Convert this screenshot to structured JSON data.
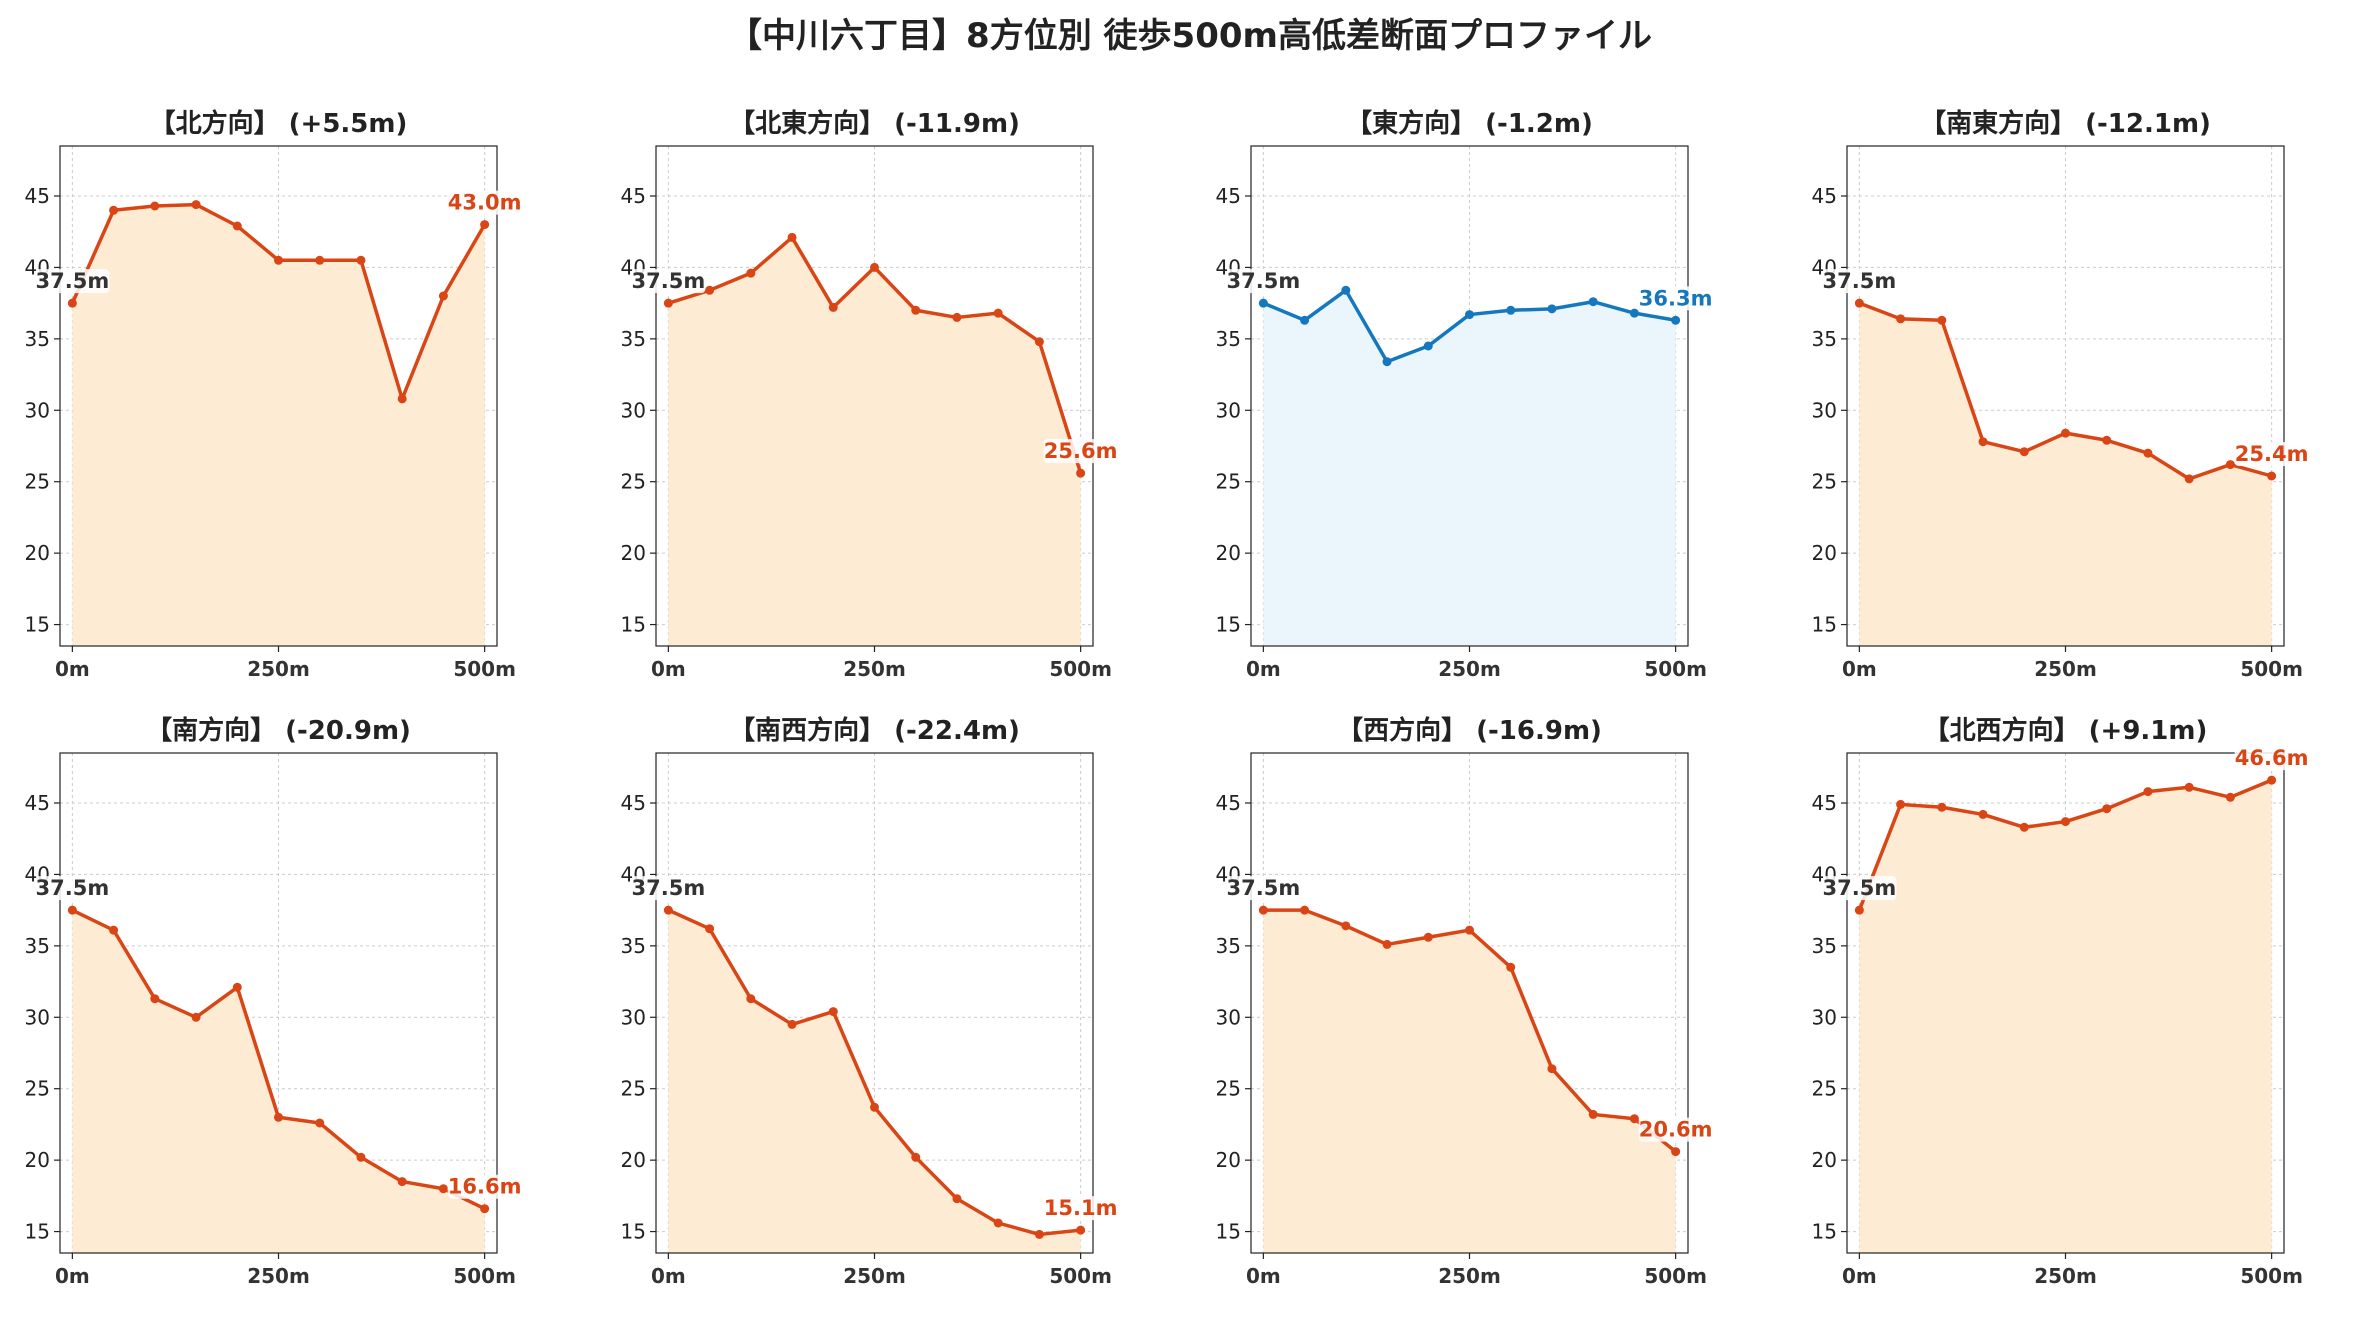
{
  "title": "【中川六丁目】8方位別 徒歩500m高低差断面プロファイル",
  "colors": {
    "down_line": "#d94515",
    "down_fill": "#fdebd3",
    "flat_line": "#1577be",
    "flat_fill": "#eaf6fc",
    "start_label": "#333333"
  },
  "chart_data": [
    {
      "type": "area",
      "title": "【北方向】 (+5.5m)",
      "trend": "down",
      "x": [
        0,
        50,
        100,
        150,
        200,
        250,
        300,
        350,
        400,
        450,
        500
      ],
      "y": [
        37.5,
        44.0,
        44.3,
        44.4,
        42.9,
        40.5,
        40.5,
        40.5,
        30.8,
        38.0,
        43.0
      ],
      "start_label": "37.5m",
      "end_label": "43.0m",
      "xticks": [
        "0m",
        "250m",
        "500m"
      ],
      "yticks": [
        15,
        20,
        25,
        30,
        35,
        40,
        45
      ],
      "xlim": [
        -15,
        515
      ],
      "ylim": [
        13.5,
        48.5
      ],
      "grid": true
    },
    {
      "type": "area",
      "title": "【北東方向】 (-11.9m)",
      "trend": "down",
      "x": [
        0,
        50,
        100,
        150,
        200,
        250,
        300,
        350,
        400,
        450,
        500
      ],
      "y": [
        37.5,
        38.4,
        39.6,
        42.1,
        37.2,
        40.0,
        37.0,
        36.5,
        36.8,
        34.8,
        25.6
      ],
      "start_label": "37.5m",
      "end_label": "25.6m",
      "xticks": [
        "0m",
        "250m",
        "500m"
      ],
      "yticks": [
        15,
        20,
        25,
        30,
        35,
        40,
        45
      ],
      "xlim": [
        -15,
        515
      ],
      "ylim": [
        13.5,
        48.5
      ],
      "grid": true
    },
    {
      "type": "area",
      "title": "【東方向】 (-1.2m)",
      "trend": "flat",
      "x": [
        0,
        50,
        100,
        150,
        200,
        250,
        300,
        350,
        400,
        450,
        500
      ],
      "y": [
        37.5,
        36.3,
        38.4,
        33.4,
        34.5,
        36.7,
        37.0,
        37.1,
        37.6,
        36.8,
        36.3
      ],
      "start_label": "37.5m",
      "end_label": "36.3m",
      "xticks": [
        "0m",
        "250m",
        "500m"
      ],
      "yticks": [
        15,
        20,
        25,
        30,
        35,
        40,
        45
      ],
      "xlim": [
        -15,
        515
      ],
      "ylim": [
        13.5,
        48.5
      ],
      "grid": true
    },
    {
      "type": "area",
      "title": "【南東方向】 (-12.1m)",
      "trend": "down",
      "x": [
        0,
        50,
        100,
        150,
        200,
        250,
        300,
        350,
        400,
        450,
        500
      ],
      "y": [
        37.5,
        36.4,
        36.3,
        27.8,
        27.1,
        28.4,
        27.9,
        27.0,
        25.2,
        26.2,
        25.4
      ],
      "start_label": "37.5m",
      "end_label": "25.4m",
      "xticks": [
        "0m",
        "250m",
        "500m"
      ],
      "yticks": [
        15,
        20,
        25,
        30,
        35,
        40,
        45
      ],
      "xlim": [
        -15,
        515
      ],
      "ylim": [
        13.5,
        48.5
      ],
      "grid": true
    },
    {
      "type": "area",
      "title": "【南方向】 (-20.9m)",
      "trend": "down",
      "x": [
        0,
        50,
        100,
        150,
        200,
        250,
        300,
        350,
        400,
        450,
        500
      ],
      "y": [
        37.5,
        36.1,
        31.3,
        30.0,
        32.1,
        23.0,
        22.6,
        20.2,
        18.5,
        18.0,
        16.6
      ],
      "start_label": "37.5m",
      "end_label": "16.6m",
      "xticks": [
        "0m",
        "250m",
        "500m"
      ],
      "yticks": [
        15,
        20,
        25,
        30,
        35,
        40,
        45
      ],
      "xlim": [
        -15,
        515
      ],
      "ylim": [
        13.5,
        48.5
      ],
      "grid": true
    },
    {
      "type": "area",
      "title": "【南西方向】 (-22.4m)",
      "trend": "down",
      "x": [
        0,
        50,
        100,
        150,
        200,
        250,
        300,
        350,
        400,
        450,
        500
      ],
      "y": [
        37.5,
        36.2,
        31.3,
        29.5,
        30.4,
        23.7,
        20.2,
        17.3,
        15.6,
        14.8,
        15.1
      ],
      "start_label": "37.5m",
      "end_label": "15.1m",
      "xticks": [
        "0m",
        "250m",
        "500m"
      ],
      "yticks": [
        15,
        20,
        25,
        30,
        35,
        40,
        45
      ],
      "xlim": [
        -15,
        515
      ],
      "ylim": [
        13.5,
        48.5
      ],
      "grid": true
    },
    {
      "type": "area",
      "title": "【西方向】 (-16.9m)",
      "trend": "down",
      "x": [
        0,
        50,
        100,
        150,
        200,
        250,
        300,
        350,
        400,
        450,
        500
      ],
      "y": [
        37.5,
        37.5,
        36.4,
        35.1,
        35.6,
        36.1,
        33.5,
        26.4,
        23.2,
        22.9,
        20.6
      ],
      "start_label": "37.5m",
      "end_label": "20.6m",
      "xticks": [
        "0m",
        "250m",
        "500m"
      ],
      "yticks": [
        15,
        20,
        25,
        30,
        35,
        40,
        45
      ],
      "xlim": [
        -15,
        515
      ],
      "ylim": [
        13.5,
        48.5
      ],
      "grid": true
    },
    {
      "type": "area",
      "title": "【北西方向】 (+9.1m)",
      "trend": "down",
      "x": [
        0,
        50,
        100,
        150,
        200,
        250,
        300,
        350,
        400,
        450,
        500
      ],
      "y": [
        37.5,
        44.9,
        44.7,
        44.2,
        43.3,
        43.7,
        44.6,
        45.8,
        46.1,
        45.4,
        46.6
      ],
      "start_label": "37.5m",
      "end_label": "46.6m",
      "xticks": [
        "0m",
        "250m",
        "500m"
      ],
      "yticks": [
        15,
        20,
        25,
        30,
        35,
        40,
        45
      ],
      "xlim": [
        -15,
        515
      ],
      "ylim": [
        13.5,
        48.5
      ],
      "grid": true
    }
  ]
}
